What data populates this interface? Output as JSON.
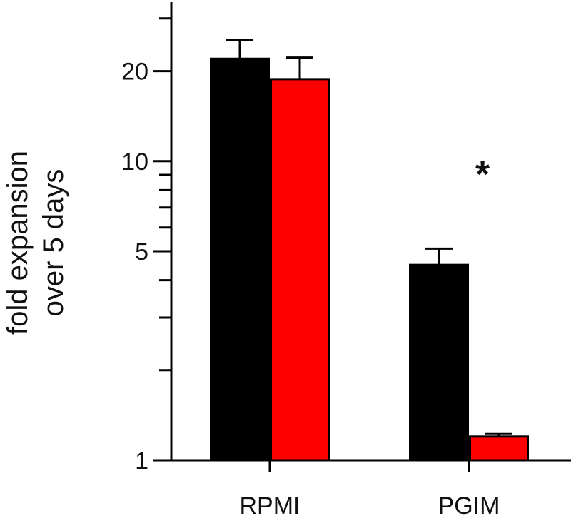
{
  "chart_data": {
    "type": "bar",
    "title": "",
    "xlabel": "",
    "ylabel_lines": [
      "fold expansion",
      "over 5 days"
    ],
    "yscale": "log",
    "ylim": [
      1,
      34
    ],
    "yticks_major": [
      {
        "value": 1,
        "label": "1"
      },
      {
        "value": 5,
        "label": "5"
      },
      {
        "value": 10,
        "label": "10"
      },
      {
        "value": 20,
        "label": "20"
      }
    ],
    "yticks_minor": [
      2,
      3,
      4,
      6,
      7,
      8,
      9,
      30
    ],
    "categories": [
      "RPMI",
      "PGIM"
    ],
    "series": [
      {
        "color": "#000000",
        "values": [
          22.0,
          4.5
        ],
        "errors": [
          3.4,
          0.6
        ]
      },
      {
        "color": "#ff0000",
        "values": [
          18.8,
          1.2
        ],
        "errors": [
          3.4,
          0.03
        ]
      }
    ],
    "annotations": [
      {
        "text": "*",
        "category": "PGIM"
      }
    ],
    "grid": false,
    "legend": "none"
  }
}
